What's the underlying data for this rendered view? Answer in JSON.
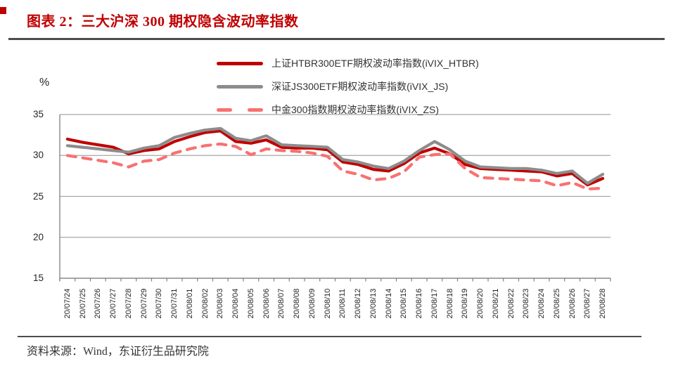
{
  "header": {
    "title": "图表 2：三大沪深 300 期权隐含波动率指数"
  },
  "footer": {
    "source": "资料来源：Wind，东证衍生品研究院"
  },
  "colors": {
    "title_red": "#c00000",
    "rule_gray": "#4d4d4d",
    "grid": "#a6a6a6",
    "axis": "#808080",
    "tick_label": "#262626",
    "series_htbr": "#c00000",
    "series_js": "#8c8c8c",
    "series_zs": "#f87171"
  },
  "chart_data": {
    "type": "line",
    "title": "图表 2：三大沪深 300 期权隐含波动率指数",
    "ylabel": "%",
    "xlabel": "",
    "ylim": [
      15,
      35
    ],
    "y_ticks": [
      35,
      30,
      25,
      20,
      15
    ],
    "grid": "horizontal",
    "legend_position": "top",
    "categories": [
      "20/07/24",
      "20/07/25",
      "20/07/26",
      "20/07/27",
      "20/07/28",
      "20/07/29",
      "20/07/30",
      "20/07/31",
      "20/08/01",
      "20/08/02",
      "20/08/03",
      "20/08/04",
      "20/08/05",
      "20/08/06",
      "20/08/07",
      "20/08/08",
      "20/08/09",
      "20/08/10",
      "20/08/11",
      "20/08/12",
      "20/08/13",
      "20/08/14",
      "20/08/15",
      "20/08/16",
      "20/08/17",
      "20/08/18",
      "20/08/19",
      "20/08/20",
      "20/08/21",
      "20/08/22",
      "20/08/23",
      "20/08/24",
      "20/08/25",
      "20/08/26",
      "20/08/27",
      "20/08/28"
    ],
    "series": [
      {
        "name": "上证HTBR300ETF期权波动率指数(iVIX_HTBR)",
        "color": "#c00000",
        "style": "solid",
        "values": [
          32.0,
          31.6,
          31.3,
          31.0,
          30.2,
          30.6,
          30.8,
          31.7,
          32.3,
          32.8,
          33.0,
          31.7,
          31.5,
          31.9,
          31.0,
          30.9,
          30.9,
          30.7,
          29.2,
          28.9,
          28.3,
          28.1,
          29.0,
          30.3,
          30.9,
          30.2,
          28.9,
          28.4,
          28.3,
          28.2,
          28.1,
          28.0,
          27.5,
          27.8,
          26.4,
          27.2
        ]
      },
      {
        "name": "深证JS300ETF期权波动率指数(iVIX_JS)",
        "color": "#8c8c8c",
        "style": "solid",
        "values": [
          31.2,
          31.0,
          30.8,
          30.6,
          30.4,
          30.9,
          31.2,
          32.2,
          32.7,
          33.1,
          33.3,
          32.1,
          31.8,
          32.4,
          31.3,
          31.2,
          31.1,
          31.0,
          29.5,
          29.2,
          28.7,
          28.4,
          29.3,
          30.6,
          31.7,
          30.7,
          29.3,
          28.6,
          28.5,
          28.4,
          28.4,
          28.2,
          27.8,
          28.1,
          26.6,
          27.7
        ]
      },
      {
        "name": "中金300指数期权波动率指数(iVIX_ZS)",
        "color": "#f87171",
        "style": "dashed",
        "values": [
          30.0,
          29.7,
          29.4,
          29.1,
          28.6,
          29.3,
          29.5,
          30.3,
          30.8,
          31.2,
          31.4,
          31.1,
          30.1,
          30.8,
          30.6,
          30.5,
          30.3,
          29.9,
          28.1,
          27.7,
          27.0,
          27.2,
          28.0,
          29.8,
          30.1,
          30.2,
          28.4,
          27.3,
          27.2,
          27.1,
          27.0,
          26.9,
          26.3,
          26.7,
          25.9,
          26.0
        ]
      }
    ]
  }
}
